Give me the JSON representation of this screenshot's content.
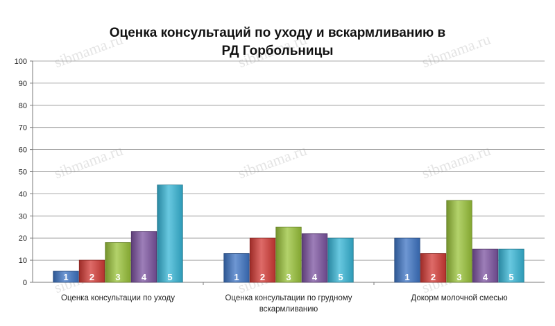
{
  "chart_data": {
    "type": "bar",
    "title": "Оценка консультаций по уходу и вскармливанию в РД Горбольницы",
    "title_lines": [
      "Оценка консультаций по уходу и вскармливанию в",
      "РД Горбольницы"
    ],
    "categories": [
      "Оценка консультации  по уходу",
      "Оценка консультации  по грудному вскармливанию",
      "Докорм молочной смесью"
    ],
    "category_lines": [
      [
        "Оценка консультации  по уходу"
      ],
      [
        "Оценка консультации  по грудному",
        "вскармливанию"
      ],
      [
        "Докорм молочной смесью"
      ]
    ],
    "series": [
      {
        "name": "1",
        "values": [
          5,
          13,
          20
        ]
      },
      {
        "name": "2",
        "values": [
          10,
          20,
          13
        ]
      },
      {
        "name": "3",
        "values": [
          18,
          25,
          37
        ]
      },
      {
        "name": "4",
        "values": [
          23,
          22,
          15
        ]
      },
      {
        "name": "5",
        "values": [
          44,
          20,
          15
        ]
      }
    ],
    "series_colors": [
      "#3d74c4",
      "#d33a35",
      "#9ac33a",
      "#7c53a0",
      "#36b5d6"
    ],
    "ylim": [
      0,
      100
    ],
    "yticks": [
      0,
      10,
      20,
      30,
      40,
      50,
      60,
      70,
      80,
      90,
      100
    ],
    "grid": true,
    "legend": "none",
    "bar_labels": "series name inside bar",
    "watermark": "sibmama.ru"
  }
}
